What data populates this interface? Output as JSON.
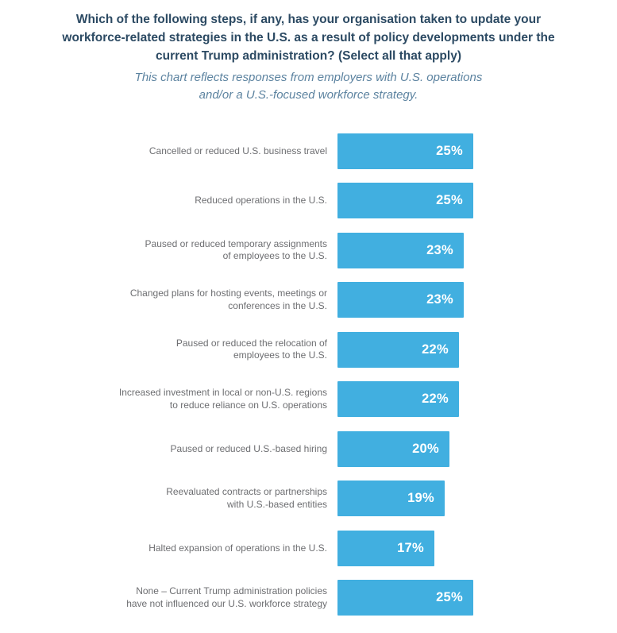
{
  "header": {
    "title_lines": [
      "Which of the following steps, if any, has your organisation taken to update your",
      "workforce-related strategies in the U.S. as a result of policy developments under the",
      "current Trump administration? (Select all that apply)"
    ],
    "subtitle_lines": [
      "This chart reflects responses from employers with U.S. operations",
      "and/or a U.S.-focused workforce strategy."
    ]
  },
  "chart_data": {
    "type": "bar",
    "orientation": "horizontal",
    "title": "Which of the following steps, if any, has your organisation taken to update your workforce-related strategies in the U.S. as a result of policy developments under the current Trump administration? (Select all that apply)",
    "subtitle": "This chart reflects responses from employers with U.S. operations and/or a U.S.-focused workforce strategy.",
    "categories": [
      "Cancelled or reduced U.S. business travel",
      "Reduced operations in the U.S.",
      "Paused or reduced temporary assignments of employees to the U.S.",
      "Changed plans for hosting events, meetings or conferences in the U.S.",
      "Paused or reduced the relocation of employees to the U.S.",
      "Increased investment in local or non-U.S. regions to reduce reliance on U.S. operations",
      "Paused or reduced U.S.-based hiring",
      "Reevaluated contracts or partnerships with U.S.-based entities",
      "Halted expansion of operations in the U.S.",
      "None – Current Trump administration policies have not influenced our U.S. workforce strategy"
    ],
    "category_lines": [
      [
        "Cancelled or reduced U.S. business travel"
      ],
      [
        "Reduced operations in the U.S."
      ],
      [
        "Paused or reduced temporary assignments",
        "of employees to the U.S."
      ],
      [
        "Changed plans for hosting events, meetings or",
        "conferences in the U.S."
      ],
      [
        "Paused or reduced the relocation of",
        "employees to the U.S."
      ],
      [
        "Increased investment in local or non-U.S. regions",
        "to reduce reliance on U.S. operations"
      ],
      [
        "Paused or reduced U.S.-based hiring"
      ],
      [
        "Reevaluated contracts or partnerships",
        "with U.S.-based entities"
      ],
      [
        "Halted expansion of operations in the U.S."
      ],
      [
        "None – Current Trump administration policies",
        "have not influenced our U.S. workforce strategy"
      ]
    ],
    "values": [
      25,
      25,
      23,
      23,
      22,
      22,
      20,
      19,
      17,
      25
    ],
    "value_labels": [
      "25%",
      "25%",
      "23%",
      "23%",
      "22%",
      "22%",
      "20%",
      "19%",
      "17%",
      "25%"
    ],
    "xlim": [
      0,
      25
    ],
    "grid": false,
    "axis": "none",
    "data_labels_position": "inside-end",
    "bar_color": "#41AFE0",
    "value_label_color": "#FFFFFF"
  },
  "colors": {
    "background": "#FFFFFF",
    "title_text": "#2C4A63",
    "subtitle_text": "#5C83A0",
    "category_text": "#6D6E71",
    "bar_fill": "#41AFE0",
    "value_text": "#FFFFFF"
  }
}
